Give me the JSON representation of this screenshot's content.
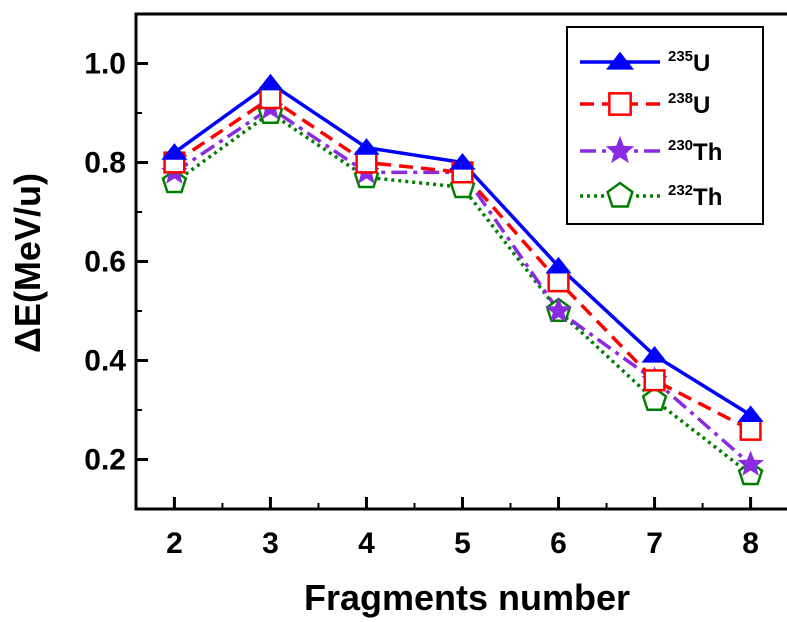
{
  "chart_data": {
    "type": "line",
    "xlabel": "Fragments number",
    "ylabel": "ΔE(MeV/u)",
    "x": [
      2,
      3,
      4,
      5,
      6,
      7,
      8
    ],
    "xlim": [
      1.6,
      8.4
    ],
    "ylim": [
      0.1,
      1.1
    ],
    "xticks": [
      "2",
      "3",
      "4",
      "5",
      "6",
      "7",
      "8"
    ],
    "yticks": [
      "0.2",
      "0.4",
      "0.6",
      "0.8",
      "1.0"
    ],
    "ytick_values": [
      0.2,
      0.4,
      0.6,
      0.8,
      1.0
    ],
    "grid": false,
    "legend_position": "top-right",
    "series": [
      {
        "name": "235U",
        "mass": "235",
        "element": "U",
        "color": "#0000ff",
        "dash": "solid",
        "marker": "triangle-filled",
        "values": [
          0.82,
          0.96,
          0.83,
          0.8,
          0.59,
          0.41,
          0.29
        ]
      },
      {
        "name": "238U",
        "mass": "238",
        "element": "U",
        "color": "#ff0000",
        "dash": "dashed",
        "marker": "square-open",
        "values": [
          0.8,
          0.93,
          0.8,
          0.78,
          0.56,
          0.36,
          0.26
        ]
      },
      {
        "name": "230Th",
        "mass": "230",
        "element": "Th",
        "color": "#8a2be2",
        "dash": "dash-dot",
        "marker": "star-filled",
        "values": [
          0.78,
          0.91,
          0.78,
          0.78,
          0.5,
          0.36,
          0.19
        ]
      },
      {
        "name": "232Th",
        "mass": "232",
        "element": "Th",
        "color": "#007f00",
        "dash": "dotted",
        "marker": "pentagon-open",
        "values": [
          0.76,
          0.9,
          0.77,
          0.75,
          0.5,
          0.32,
          0.17
        ]
      }
    ]
  }
}
